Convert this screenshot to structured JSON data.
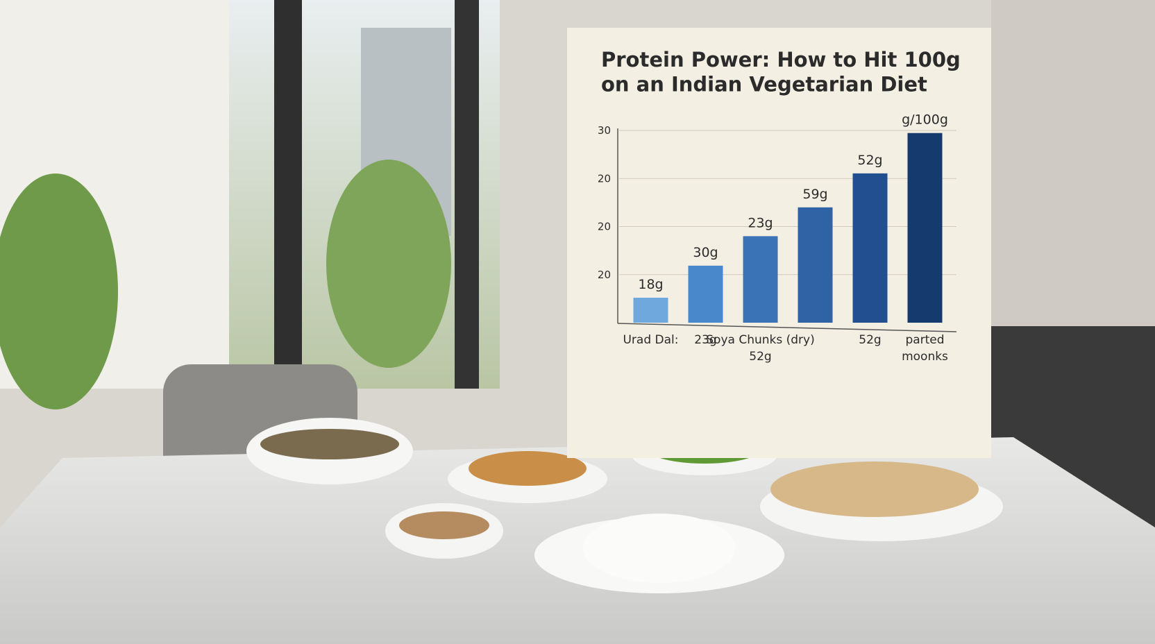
{
  "chart_data": {
    "type": "bar",
    "title": "Protein Power: How to Hit 100g\non an Indian Vegetarian Diet",
    "categories": [
      "Urad Dal:",
      "23g",
      "Soya Chunks (dry)\n52g",
      null,
      "52g",
      "parted\nmoonks"
    ],
    "values": [
      3.9,
      8.9,
      13.5,
      18.0,
      23.3,
      29.6
    ],
    "annotations": [
      "18g",
      "30g",
      "23g",
      "59g",
      "52g",
      "g/100g"
    ],
    "colors": [
      "#6fa8dc",
      "#4a88cc",
      "#3b74b6",
      "#2f63a5",
      "#224f8f",
      "#143a6e"
    ],
    "ylim": [
      0,
      30
    ],
    "yticks": [
      {
        "value": 7.5,
        "label": "20"
      },
      {
        "value": 15,
        "label": "20"
      },
      {
        "value": 22.5,
        "label": "20"
      },
      30
    ],
    "grid": true
  }
}
